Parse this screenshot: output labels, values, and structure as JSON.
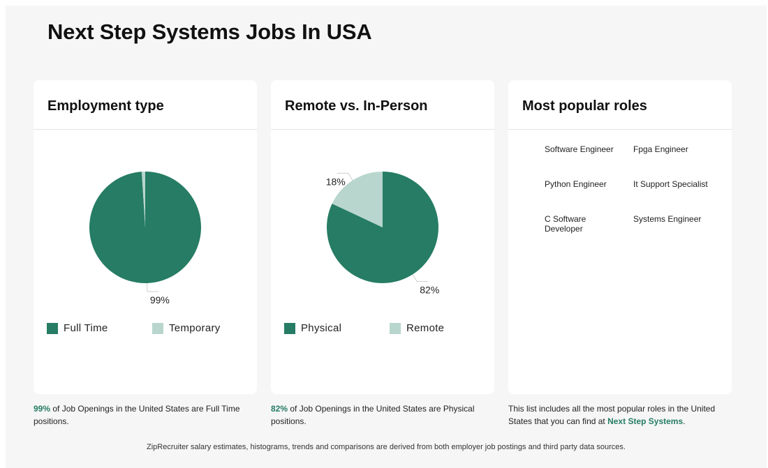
{
  "page": {
    "title": "Next Step Systems Jobs In USA",
    "footer_note": "ZipRecruiter salary estimates, histograms, trends and comparisons are derived from both employer job postings and third party data sources."
  },
  "colors": {
    "primary": "#267c64",
    "secondary": "#b8d6cd",
    "accent_text": "#267c64"
  },
  "employment": {
    "title": "Employment type",
    "caption": {
      "pct": "99%",
      "text": " of Job Openings in the United States are Full Time positions."
    }
  },
  "remote": {
    "title": "Remote vs. In-Person",
    "caption": {
      "pct": "82%",
      "text": " of Job Openings in the United States are Physical positions."
    }
  },
  "roles": {
    "title": "Most popular roles",
    "items": [
      "Software Engineer",
      "Fpga Engineer",
      "Python Engineer",
      "It Support Specialist",
      "C Software Developer",
      "Systems Engineer"
    ],
    "caption": {
      "pre": "This list includes all the most popular roles in the United States that you can find at ",
      "company": "Next Step Systems",
      "post": "."
    }
  },
  "chart_data": [
    {
      "type": "pie",
      "title": "Employment type",
      "slices": [
        {
          "name": "Full Time",
          "value": 99,
          "label": "99%"
        },
        {
          "name": "Temporary",
          "value": 1,
          "label": ""
        }
      ],
      "legend": "bottom"
    },
    {
      "type": "pie",
      "title": "Remote vs. In-Person",
      "slices": [
        {
          "name": "Physical",
          "value": 82,
          "label": "82%"
        },
        {
          "name": "Remote",
          "value": 18,
          "label": "18%"
        }
      ],
      "legend": "bottom"
    }
  ]
}
